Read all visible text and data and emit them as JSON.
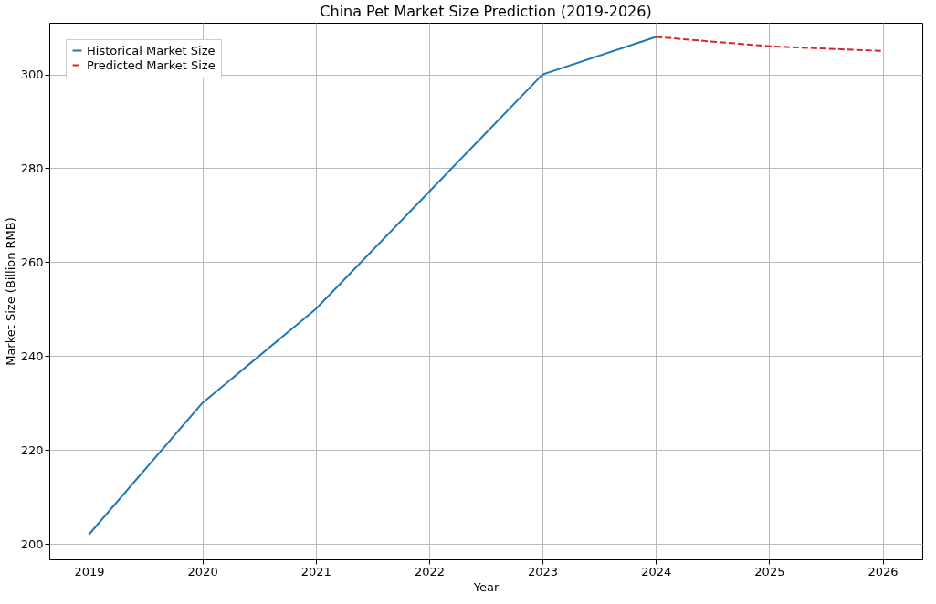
{
  "chart_data": {
    "type": "line",
    "title": "China Pet Market Size Prediction (2019-2026)",
    "xlabel": "Year",
    "ylabel": "Market Size (Billion RMB)",
    "series": [
      {
        "name": "Historical Market Size",
        "color": "#1f77b4",
        "x": [
          2019,
          2020,
          2021,
          2022,
          2023,
          2024
        ],
        "values": [
          202,
          230,
          250,
          275,
          300,
          308
        ],
        "line_style": "solid"
      },
      {
        "name": "Predicted Market Size",
        "color": "#d62728",
        "x": [
          2024,
          2025,
          2026
        ],
        "values": [
          308,
          306,
          305
        ],
        "line_style": "dashed"
      }
    ],
    "xlim": [
      2018.65,
      2026.35
    ],
    "xticks": [
      2019,
      2020,
      2021,
      2022,
      2023,
      2024,
      2025,
      2026
    ],
    "ylim": [
      196.7,
      311
    ],
    "yticks": [
      200,
      220,
      240,
      260,
      280,
      300
    ],
    "grid": true,
    "legend": "top left",
    "marker": "none"
  }
}
